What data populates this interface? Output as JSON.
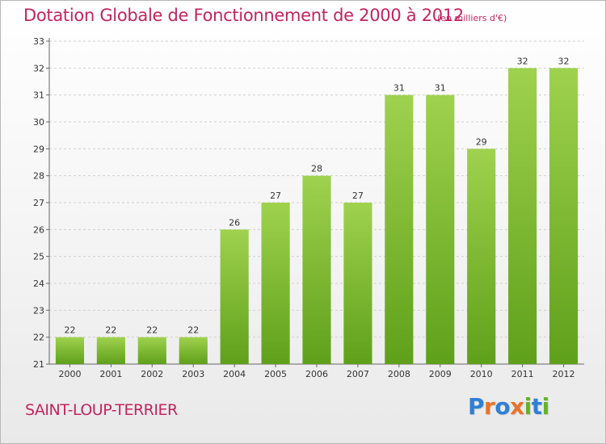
{
  "title": "Dotation Globale de Fonctionnement de 2000 à 2012",
  "subtitle": "(en milliers d'€)",
  "commune": "SAINT-LOUP-TERRIER",
  "logo": {
    "letters": [
      {
        "char": "P",
        "color": "#2f7fd6"
      },
      {
        "char": "r",
        "color": "#e8742a"
      },
      {
        "char": "o",
        "color": "#2f7fd6"
      },
      {
        "char": "x",
        "color": "#e8742a"
      },
      {
        "char": "i",
        "color": "#66b22b"
      },
      {
        "char": "t",
        "color": "#2f7fd6"
      },
      {
        "char": "i",
        "color": "#66b22b"
      }
    ]
  },
  "colors": {
    "bar_top": "#9fd24e",
    "bar_bottom": "#5fa01a",
    "grid": "#d0d0d0",
    "accent": "#c4245e"
  },
  "chart_data": {
    "type": "bar",
    "title": "Dotation Globale de Fonctionnement de 2000 à 2012",
    "subtitle": "(en milliers d'€)",
    "categories": [
      "2000",
      "2001",
      "2002",
      "2003",
      "2004",
      "2005",
      "2006",
      "2007",
      "2008",
      "2009",
      "2010",
      "2011",
      "2012"
    ],
    "values": [
      22,
      22,
      22,
      22,
      26,
      27,
      28,
      27,
      31,
      31,
      29,
      32,
      32
    ],
    "ylim": [
      21,
      33
    ],
    "yticks": [
      21,
      22,
      23,
      24,
      25,
      26,
      27,
      28,
      29,
      30,
      31,
      32,
      33
    ],
    "grid": true,
    "xlabel": "",
    "ylabel": ""
  }
}
